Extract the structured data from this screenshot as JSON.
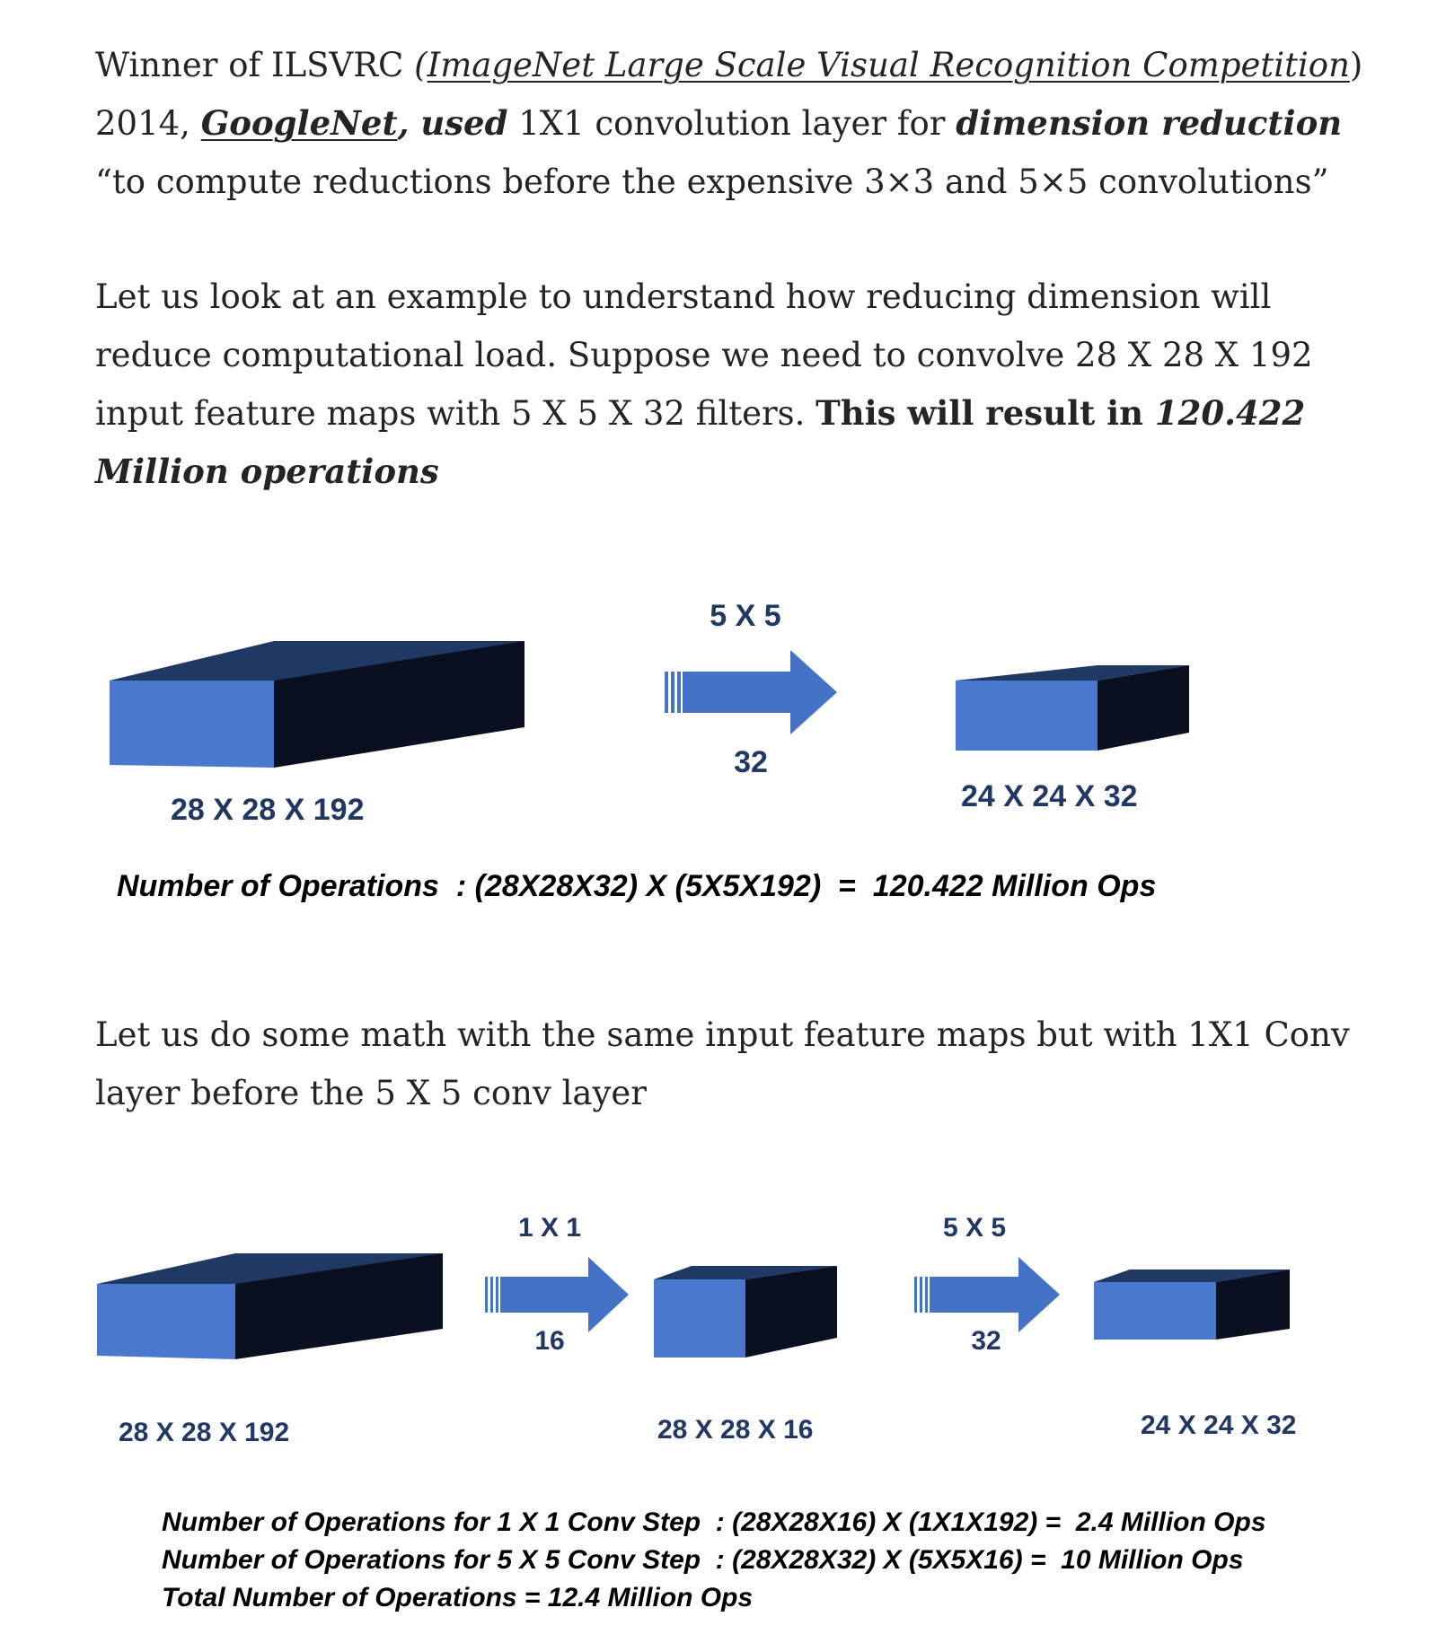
{
  "paragraph1": {
    "p1": "Winner of ILSVRC ",
    "p2": "(",
    "link": "ImageNet Large Scale Visual Recognition Competition",
    "p3": ") 2014, ",
    "googlenet": "GoogleNet",
    "used": ", used",
    "p4": " 1X1 convolution layer for ",
    "dimred": "dimension reduction",
    "p5": " “to compute reductions before the expensive 3×3 and 5×5 convolutions”"
  },
  "paragraph2": {
    "p1": "Let us look at an example to understand how reducing dimension will reduce computational load. Suppose we need to convolve 28 X 28 X 192 input feature maps with 5 X 5 X 32 filters. ",
    "bold": "This will result in ",
    "bold_italic": "120.422 Million operations"
  },
  "figure1": {
    "input_label": "28 X 28 X 192",
    "filter_size": "5 X 5",
    "filter_count": "32",
    "output_label": "24 X 24 X 32",
    "operations": "Number of Operations  : (28X28X32) X (5X5X192)  =  120.422 Million Ops"
  },
  "paragraph3": {
    "text": "Let us do some math with the same input feature maps but with 1X1 Conv layer before the 5 X 5 conv layer"
  },
  "figure2": {
    "input_label": "28 X 28 X 192",
    "conv1_size": "1 X 1",
    "conv1_count": "16",
    "mid_label": "28 X 28 X 16",
    "conv2_size": "5 X 5",
    "conv2_count": "32",
    "output_label": "24 X 24 X 32",
    "ops_line1": "Number of Operations for 1 X 1 Conv Step  : (28X28X16) X (1X1X192) =  2.4 Million Ops",
    "ops_line2": "Number of Operations for 5 X 5 Conv Step  : (28X28X32) X (5X5X16) =  10 Million Ops",
    "ops_line3": "Total Number of Operations = 12.4 Million Ops"
  },
  "colors": {
    "block_front": "#4a78cf",
    "block_side": "#0b1020",
    "block_top": "#1f3864",
    "arrow": "#4472c4",
    "label": "#1f3864"
  }
}
